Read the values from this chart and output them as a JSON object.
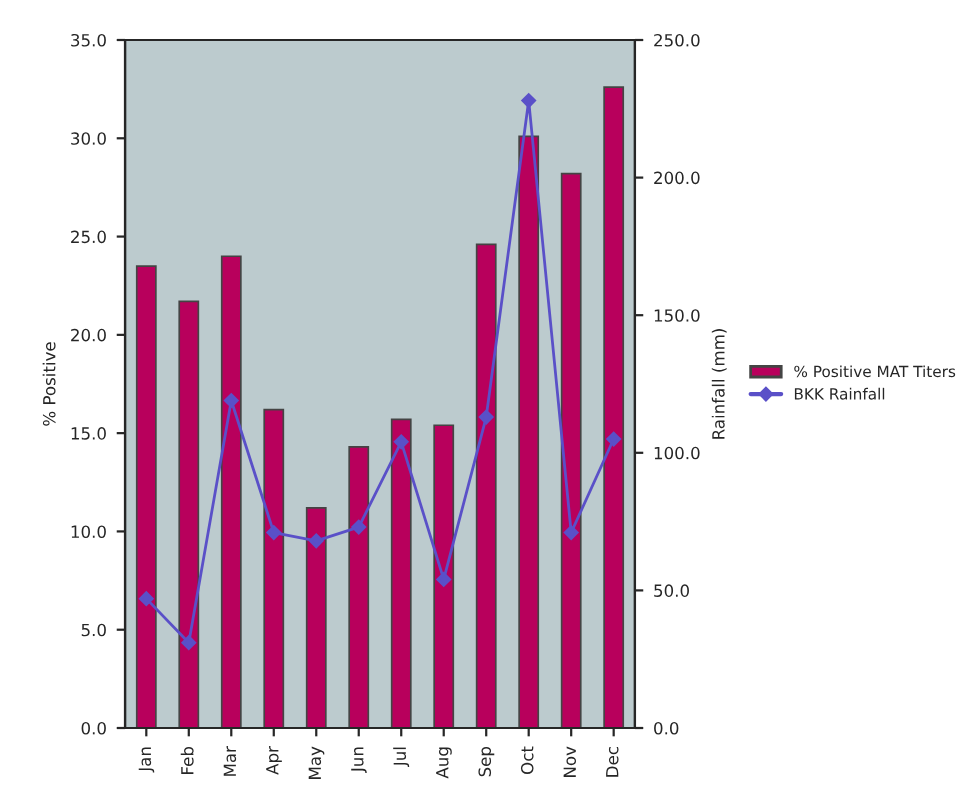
{
  "chart_data": {
    "type": "bar",
    "xlabel": null,
    "ylabel": "% Positive",
    "y2label": "Rainfall (mm)",
    "categories": [
      "Jan",
      "Feb",
      "Mar",
      "Apr",
      "May",
      "Jun",
      "Jul",
      "Aug",
      "Sep",
      "Oct",
      "Nov",
      "Dec"
    ],
    "series": [
      {
        "name": "% Positive MAT Titers",
        "color": "#b8005c",
        "values": [
          23.5,
          21.7,
          24.0,
          16.2,
          11.2,
          14.3,
          15.7,
          15.4,
          24.6,
          30.1,
          28.2,
          32.6
        ]
      },
      {
        "name": "BKK Rainfall",
        "type": "line",
        "axis": "y2",
        "color": "#5a50c8",
        "marker": "diamond",
        "line_style": "solid",
        "values": [
          47,
          31,
          119,
          71,
          68,
          73,
          104,
          54,
          113,
          228,
          71,
          105
        ]
      }
    ],
    "ylim": [
      0,
      35
    ],
    "yticks": [
      {
        "value": 0,
        "label": "0.0"
      },
      {
        "value": 5,
        "label": "5.0"
      },
      {
        "value": 10,
        "label": "10.0"
      },
      {
        "value": 15,
        "label": "15.0"
      },
      {
        "value": 20,
        "label": "20.0"
      },
      {
        "value": 25,
        "label": "25.0"
      },
      {
        "value": 30,
        "label": "30.0"
      },
      {
        "value": 35,
        "label": "35.0"
      }
    ],
    "y2lim": [
      0,
      250
    ],
    "y2ticks": [
      {
        "value": 0,
        "label": "0.0"
      },
      {
        "value": 50,
        "label": "50.0"
      },
      {
        "value": 100,
        "label": "100.0"
      },
      {
        "value": 150,
        "label": "150.0"
      },
      {
        "value": 200,
        "label": "200.0"
      },
      {
        "value": 250,
        "label": "250.0"
      }
    ],
    "grid": false,
    "legend": "right"
  }
}
